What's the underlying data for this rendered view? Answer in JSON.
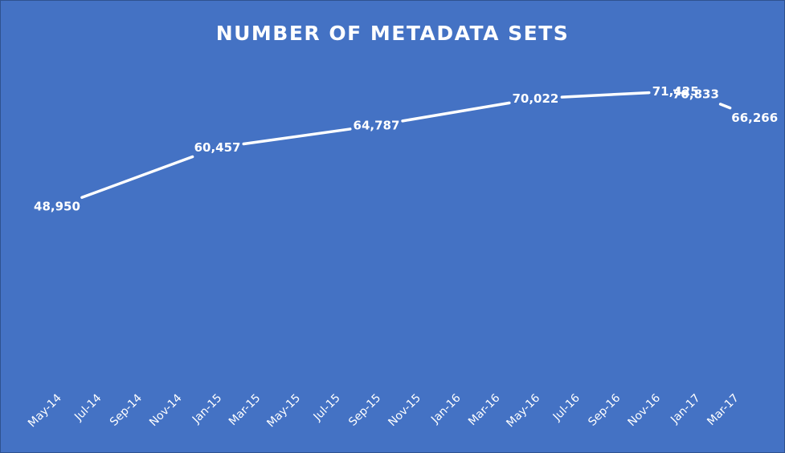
{
  "chart_data": {
    "type": "line",
    "title": "NUMBER OF METADATA SETS",
    "xlabel": "",
    "ylabel": "",
    "x_axis": "date",
    "x_tick_labels": [
      "May-14",
      "Jul-14",
      "Sep-14",
      "Nov-14",
      "Jan-15",
      "Mar-15",
      "May-15",
      "Jul-15",
      "Sep-15",
      "Nov-15",
      "Jan-16",
      "Mar-16",
      "May-16",
      "Jul-16",
      "Sep-16",
      "Nov-16",
      "Jan-17",
      "Mar-17"
    ],
    "x_tick_dates": [
      "2014-05-01",
      "2014-07-01",
      "2014-09-01",
      "2014-11-01",
      "2015-01-01",
      "2015-03-01",
      "2015-05-01",
      "2015-07-01",
      "2015-09-01",
      "2015-11-01",
      "2016-01-01",
      "2016-03-01",
      "2016-05-01",
      "2016-07-01",
      "2016-09-01",
      "2016-11-01",
      "2017-01-01",
      "2017-03-01"
    ],
    "series": [
      {
        "points": [
          {
            "x": "2014-05-01",
            "y": 48950,
            "label": "48,950"
          },
          {
            "x": "2015-01-01",
            "y": 60457,
            "label": "60,457"
          },
          {
            "x": "2015-09-01",
            "y": 64787,
            "label": "64,787"
          },
          {
            "x": "2016-05-01",
            "y": 70022,
            "label": "70,022"
          },
          {
            "x": "2016-12-01",
            "y": 71425,
            "label": "71,425"
          },
          {
            "x": "2017-01-01",
            "y": 70833,
            "label": "70,833"
          },
          {
            "x": "2017-04-01",
            "y": 66266,
            "label": "66,266"
          }
        ]
      }
    ],
    "drop_lines": true,
    "grid": false,
    "legend": "none",
    "colors": {
      "background": "#4472C4",
      "line": "#ffffff",
      "text": "#ffffff"
    }
  }
}
